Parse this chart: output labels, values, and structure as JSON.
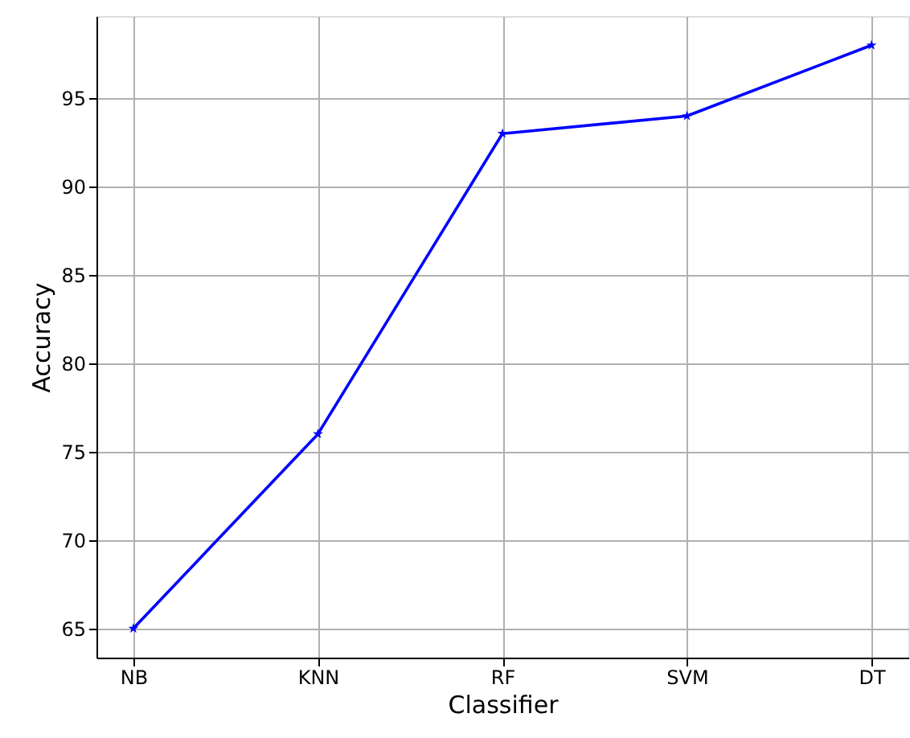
{
  "chart_data": {
    "type": "line",
    "xlabel": "Classifier",
    "ylabel": "Accuracy",
    "categories": [
      "NB",
      "KNN",
      "RF",
      "SVM",
      "DT"
    ],
    "series": [
      {
        "color": "#0000ff",
        "values": [
          65,
          76,
          93,
          94,
          98
        ]
      }
    ],
    "ylim": [
      63.35,
      99.65
    ],
    "yticks": [
      65,
      70,
      75,
      80,
      85,
      90,
      95
    ],
    "grid": true,
    "marker": "star",
    "line_style": "solid"
  }
}
